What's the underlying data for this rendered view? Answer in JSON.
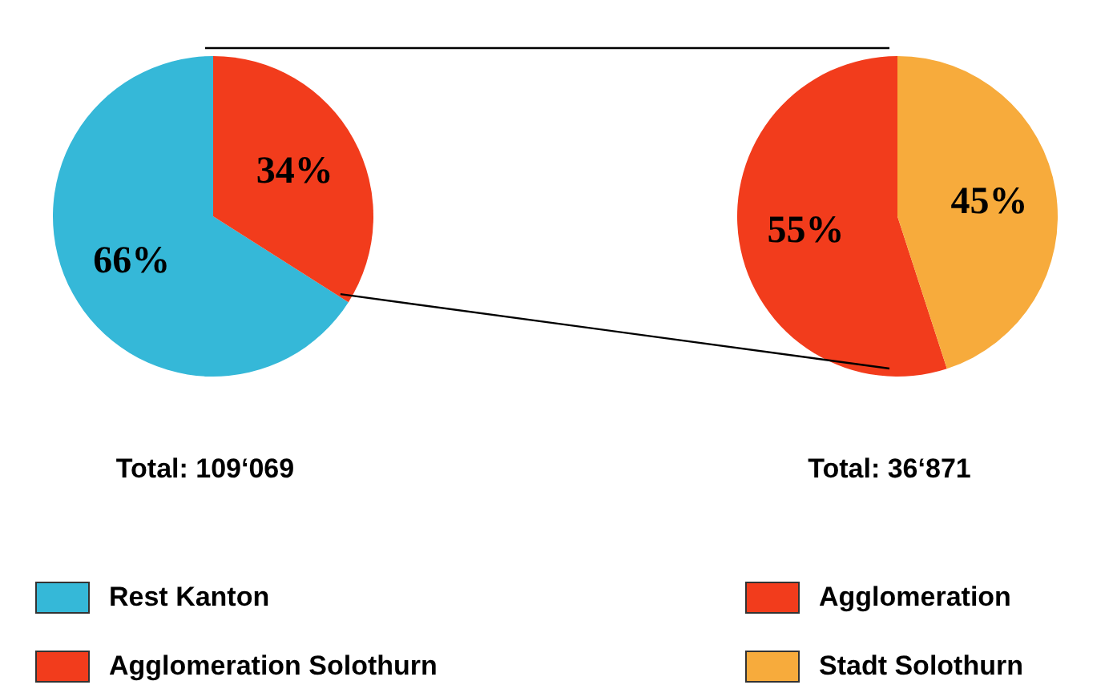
{
  "chart_data": [
    {
      "type": "pie",
      "categories": [
        "Rest Kanton",
        "Agglomeration Solothurn"
      ],
      "values": [
        66,
        34
      ],
      "colors": [
        "#35b8d8",
        "#f23c1c"
      ],
      "value_labels": [
        "66%",
        "34%"
      ],
      "legend": "bottom",
      "annotations": [
        "Total: 109‘069"
      ]
    },
    {
      "type": "pie",
      "categories": [
        "Agglomeration",
        "Stadt Solothurn"
      ],
      "values": [
        55,
        45
      ],
      "colors": [
        "#f23c1c",
        "#f7ab3c"
      ],
      "value_labels": [
        "55%",
        "45%"
      ],
      "legend": "bottom",
      "annotations": [
        "Total: 36‘871"
      ]
    }
  ]
}
